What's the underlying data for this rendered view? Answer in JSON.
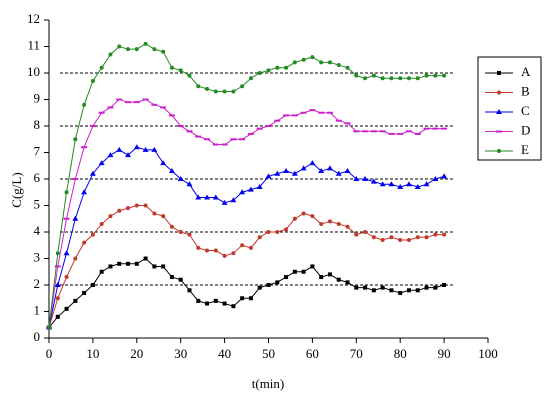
{
  "chart_data": {
    "type": "line",
    "x_label": "t(min)",
    "y_label": "C(g/L)",
    "x": [
      0,
      2,
      4,
      6,
      8,
      10,
      12,
      14,
      16,
      18,
      20,
      22,
      24,
      26,
      28,
      30,
      32,
      34,
      36,
      38,
      40,
      42,
      44,
      46,
      48,
      50,
      52,
      54,
      56,
      58,
      60,
      62,
      64,
      66,
      68,
      70,
      72,
      74,
      76,
      78,
      80,
      82,
      84,
      86,
      88,
      90
    ],
    "series": [
      {
        "name": "A",
        "color": "#000000",
        "marker": "square",
        "values": [
          0.4,
          0.8,
          1.1,
          1.4,
          1.7,
          2.0,
          2.5,
          2.7,
          2.8,
          2.8,
          2.8,
          3.0,
          2.7,
          2.7,
          2.3,
          2.2,
          1.8,
          1.4,
          1.3,
          1.4,
          1.3,
          1.2,
          1.5,
          1.5,
          1.9,
          2.0,
          2.1,
          2.3,
          2.5,
          2.5,
          2.7,
          2.3,
          2.4,
          2.2,
          2.1,
          1.9,
          1.9,
          1.8,
          1.9,
          1.8,
          1.7,
          1.8,
          1.8,
          1.9,
          1.9,
          2.0
        ]
      },
      {
        "name": "B",
        "color": "#c0392b",
        "marker": "circle",
        "values": [
          0.4,
          1.5,
          2.3,
          3.0,
          3.6,
          3.9,
          4.3,
          4.6,
          4.8,
          4.9,
          5.0,
          5.0,
          4.7,
          4.6,
          4.2,
          4.0,
          3.9,
          3.4,
          3.3,
          3.3,
          3.1,
          3.2,
          3.5,
          3.4,
          3.8,
          4.0,
          4.0,
          4.1,
          4.5,
          4.7,
          4.6,
          4.3,
          4.4,
          4.3,
          4.2,
          3.9,
          4.0,
          3.8,
          3.7,
          3.8,
          3.7,
          3.7,
          3.8,
          3.8,
          3.9,
          3.9
        ]
      },
      {
        "name": "C",
        "color": "#0000ee",
        "marker": "triangle",
        "values": [
          0.4,
          2.0,
          3.2,
          4.5,
          5.5,
          6.2,
          6.6,
          6.9,
          7.1,
          6.9,
          7.2,
          7.1,
          7.1,
          6.6,
          6.3,
          6.0,
          5.8,
          5.3,
          5.3,
          5.3,
          5.1,
          5.2,
          5.5,
          5.6,
          5.7,
          6.1,
          6.2,
          6.3,
          6.2,
          6.4,
          6.6,
          6.3,
          6.4,
          6.2,
          6.3,
          6.0,
          6.0,
          5.9,
          5.8,
          5.8,
          5.7,
          5.8,
          5.7,
          5.8,
          6.0,
          6.1
        ]
      },
      {
        "name": "D",
        "color": "#cc22cc",
        "marker": "dash",
        "values": [
          0.4,
          2.7,
          4.5,
          6.0,
          7.2,
          8.0,
          8.5,
          8.7,
          9.0,
          8.9,
          8.9,
          9.0,
          8.8,
          8.7,
          8.4,
          8.0,
          7.8,
          7.6,
          7.5,
          7.3,
          7.3,
          7.5,
          7.5,
          7.7,
          7.9,
          8.0,
          8.2,
          8.4,
          8.4,
          8.5,
          8.6,
          8.5,
          8.5,
          8.2,
          8.1,
          7.8,
          7.8,
          7.8,
          7.8,
          7.7,
          7.7,
          7.8,
          7.7,
          7.9,
          7.9,
          7.9
        ]
      },
      {
        "name": "E",
        "color": "#228b22",
        "marker": "circle",
        "values": [
          0.4,
          3.2,
          5.5,
          7.5,
          8.8,
          9.7,
          10.2,
          10.7,
          11.0,
          10.9,
          10.9,
          11.1,
          10.9,
          10.8,
          10.2,
          10.1,
          9.9,
          9.5,
          9.4,
          9.3,
          9.3,
          9.3,
          9.5,
          9.8,
          10.0,
          10.1,
          10.2,
          10.2,
          10.4,
          10.5,
          10.6,
          10.4,
          10.4,
          10.3,
          10.2,
          9.9,
          9.8,
          9.9,
          9.8,
          9.8,
          9.8,
          9.8,
          9.8,
          9.9,
          9.9,
          9.9
        ]
      }
    ],
    "xlim": [
      0,
      100
    ],
    "xticks": [
      0,
      10,
      20,
      30,
      40,
      50,
      60,
      70,
      80,
      90,
      100
    ],
    "ylim": [
      0,
      12
    ],
    "yticks": [
      0,
      1,
      2,
      3,
      4,
      5,
      6,
      7,
      8,
      9,
      10,
      11,
      12
    ],
    "reference_lines": {
      "values": [
        2,
        4,
        6,
        8,
        10
      ],
      "xlim": [
        2.5,
        92
      ],
      "style": "dashed"
    },
    "legend": "right"
  }
}
